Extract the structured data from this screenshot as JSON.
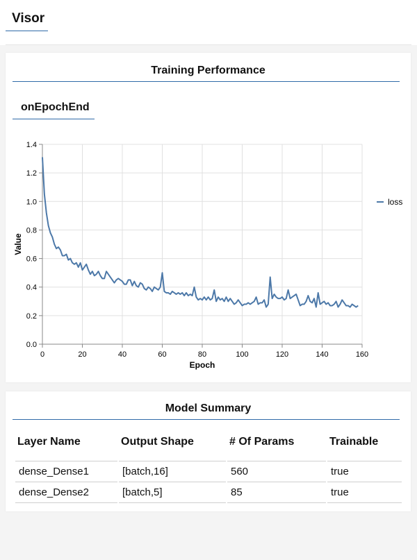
{
  "app": {
    "title": "Visor"
  },
  "training": {
    "title": "Training Performance",
    "tab": "onEpochEnd"
  },
  "chart_data": {
    "type": "line",
    "xlabel": "Epoch",
    "ylabel": "Value",
    "xlim": [
      0,
      160
    ],
    "ylim": [
      0,
      1.4
    ],
    "xticks": [
      0,
      20,
      40,
      60,
      80,
      100,
      120,
      140,
      160
    ],
    "yticks": [
      0,
      0.2,
      0.4,
      0.6,
      0.8,
      1.0,
      1.2,
      1.4
    ],
    "ytick_labels": [
      "0.0",
      "0.2",
      "0.4",
      "0.6",
      "0.8",
      "1.0",
      "1.2",
      "1.4"
    ],
    "grid": true,
    "legend": "top-right",
    "color": "#4c78a8",
    "series": [
      {
        "name": "loss",
        "values": [
          1.31,
          1.05,
          0.92,
          0.83,
          0.78,
          0.75,
          0.7,
          0.67,
          0.68,
          0.66,
          0.62,
          0.62,
          0.63,
          0.59,
          0.6,
          0.57,
          0.56,
          0.57,
          0.54,
          0.57,
          0.52,
          0.54,
          0.56,
          0.52,
          0.49,
          0.51,
          0.48,
          0.49,
          0.51,
          0.48,
          0.46,
          0.46,
          0.51,
          0.49,
          0.47,
          0.45,
          0.43,
          0.45,
          0.46,
          0.45,
          0.44,
          0.42,
          0.42,
          0.45,
          0.45,
          0.41,
          0.44,
          0.41,
          0.4,
          0.43,
          0.42,
          0.39,
          0.38,
          0.4,
          0.39,
          0.37,
          0.4,
          0.39,
          0.38,
          0.4,
          0.5,
          0.37,
          0.36,
          0.36,
          0.35,
          0.37,
          0.36,
          0.35,
          0.36,
          0.35,
          0.36,
          0.34,
          0.36,
          0.34,
          0.35,
          0.34,
          0.4,
          0.33,
          0.31,
          0.32,
          0.31,
          0.33,
          0.31,
          0.33,
          0.31,
          0.32,
          0.38,
          0.3,
          0.33,
          0.31,
          0.32,
          0.3,
          0.33,
          0.3,
          0.32,
          0.3,
          0.28,
          0.29,
          0.31,
          0.29,
          0.27,
          0.28,
          0.28,
          0.29,
          0.28,
          0.29,
          0.3,
          0.33,
          0.28,
          0.29,
          0.29,
          0.31,
          0.26,
          0.28,
          0.47,
          0.32,
          0.35,
          0.33,
          0.32,
          0.32,
          0.33,
          0.31,
          0.32,
          0.38,
          0.32,
          0.33,
          0.34,
          0.35,
          0.31,
          0.27,
          0.28,
          0.28,
          0.3,
          0.34,
          0.3,
          0.29,
          0.32,
          0.26,
          0.36,
          0.28,
          0.29,
          0.3,
          0.28,
          0.29,
          0.27,
          0.27,
          0.28,
          0.3,
          0.26,
          0.28,
          0.31,
          0.29,
          0.27,
          0.27,
          0.26,
          0.28,
          0.27,
          0.26,
          0.27
        ]
      }
    ]
  },
  "summary": {
    "title": "Model Summary",
    "columns": [
      "Layer Name",
      "Output Shape",
      "# Of Params",
      "Trainable"
    ],
    "rows": [
      [
        "dense_Dense1",
        "[batch,16]",
        "560",
        "true"
      ],
      [
        "dense_Dense2",
        "[batch,5]",
        "85",
        "true"
      ]
    ]
  }
}
